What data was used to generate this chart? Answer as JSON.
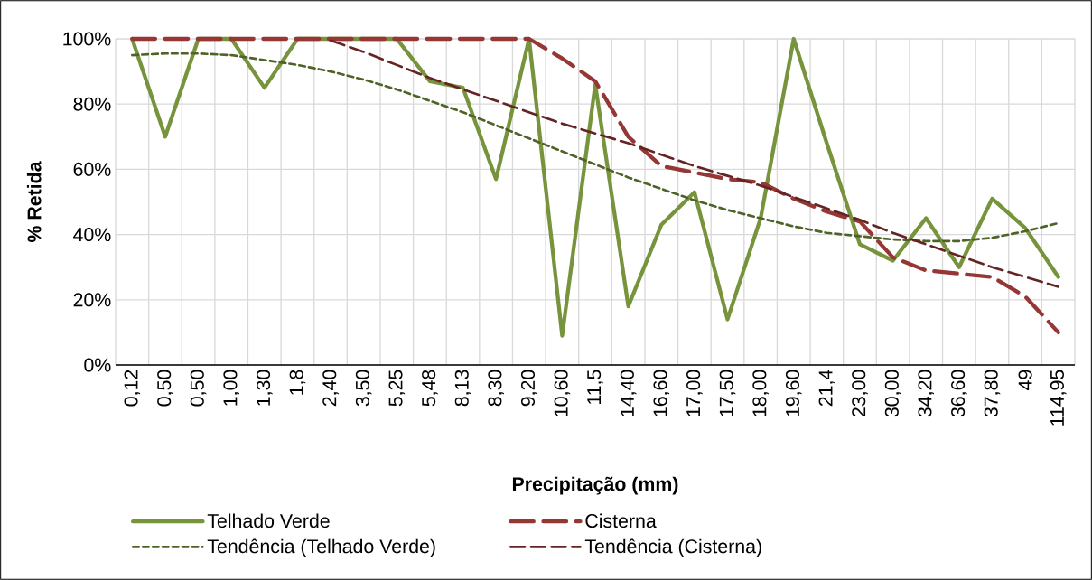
{
  "chart_data": {
    "type": "line",
    "xlabel": "Precipitação (mm)",
    "ylabel": "% Retida",
    "categories": [
      "0,12",
      "0,50",
      "0,50",
      "1,00",
      "1,30",
      "1,8",
      "2,40",
      "3,50",
      "5,25",
      "5,48",
      "8,13",
      "8,30",
      "9,20",
      "10,60",
      "11,5",
      "14,40",
      "16,60",
      "17,00",
      "17,50",
      "18,00",
      "19,60",
      "21,4",
      "23,00",
      "30,00",
      "34,20",
      "36,60",
      "37,80",
      "49",
      "114,95"
    ],
    "series": [
      {
        "name": "Telhado Verde",
        "color": "#77933c",
        "line_style": "solid",
        "values": [
          100,
          70,
          100,
          100,
          85,
          100,
          100,
          100,
          100,
          87,
          85,
          57,
          100,
          9,
          86,
          18,
          43,
          53,
          14,
          45,
          100,
          68,
          37,
          32,
          45,
          30,
          51,
          42,
          27
        ]
      },
      {
        "name": "Cisterna",
        "color": "#953735",
        "line_style": "dashed",
        "values": [
          100,
          100,
          100,
          100,
          100,
          100,
          100,
          100,
          100,
          100,
          100,
          100,
          100,
          94,
          87,
          70,
          61,
          59,
          57,
          56,
          51,
          47,
          44,
          33,
          29,
          28,
          27,
          21,
          10
        ]
      },
      {
        "name": "Tendência (Telhado Verde)",
        "color": "#4f6228",
        "line_style": "dotted",
        "values": [
          95,
          95.5,
          95.5,
          95,
          93.5,
          92,
          90,
          87.5,
          84.5,
          81,
          77.5,
          73.5,
          69.5,
          65.5,
          61.5,
          57.5,
          54,
          50.5,
          47.5,
          45,
          42.5,
          40.5,
          39.5,
          38.5,
          38,
          38,
          39,
          41,
          43.5
        ]
      },
      {
        "name": "Tendência (Cisterna)",
        "color": "#632423",
        "line_style": "dashed",
        "values": [
          null,
          null,
          null,
          null,
          null,
          null,
          99.5,
          96,
          92,
          88,
          84.5,
          81,
          77.5,
          74,
          71,
          68,
          64.5,
          61,
          58,
          55,
          51.5,
          48,
          44.5,
          40.5,
          37,
          33.5,
          30,
          27,
          24
        ]
      }
    ],
    "ylim": [
      0,
      100
    ],
    "yticks": [
      {
        "value": 0,
        "label": "0%"
      },
      {
        "value": 20,
        "label": "20%"
      },
      {
        "value": 40,
        "label": "40%"
      },
      {
        "value": 60,
        "label": "60%"
      },
      {
        "value": 80,
        "label": "80%"
      },
      {
        "value": 100,
        "label": "100%"
      }
    ],
    "grid": true,
    "legend": "bottom"
  }
}
